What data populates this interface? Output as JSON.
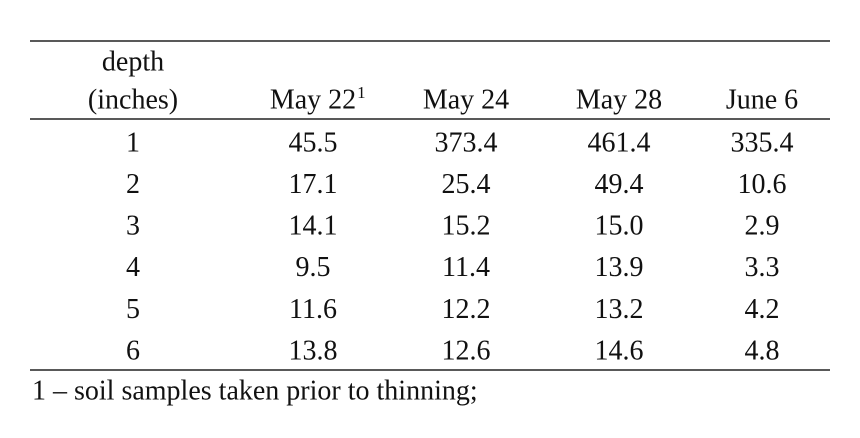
{
  "table": {
    "columns": [
      "depth",
      "May 22",
      "May 24",
      "May 28",
      "June 6"
    ],
    "column_unit": "(inches)",
    "footnote_mark": "1",
    "rows": [
      [
        "1",
        "45.5",
        "373.4",
        "461.4",
        "335.4"
      ],
      [
        "2",
        "17.1",
        "25.4",
        "49.4",
        "10.6"
      ],
      [
        "3",
        "14.1",
        "15.2",
        "15.0",
        "2.9"
      ],
      [
        "4",
        "9.5",
        "11.4",
        "13.9",
        "3.3"
      ],
      [
        "5",
        "11.6",
        "12.2",
        "13.2",
        "4.2"
      ],
      [
        "6",
        "13.8",
        "12.6",
        "14.6",
        "4.8"
      ]
    ],
    "footnote": "1 – soil samples taken prior to thinning;"
  }
}
